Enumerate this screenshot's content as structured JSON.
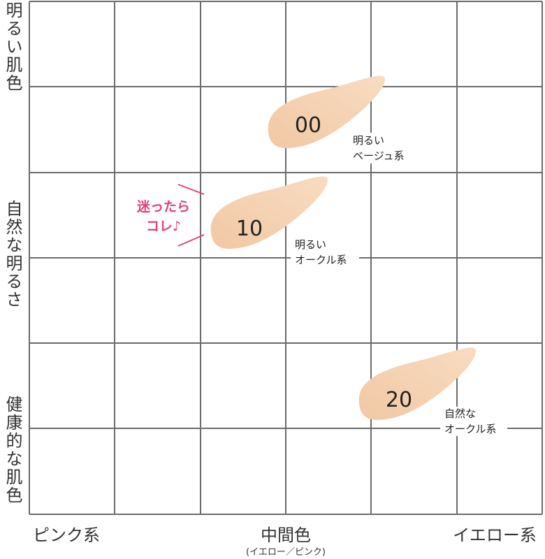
{
  "y_axis_labels": [
    "明るい肌色",
    "自然な明るさ",
    "健康的な肌色"
  ],
  "x_axis_labels": [
    "ピンク系",
    "中間色",
    "イエロー系"
  ],
  "x_axis_sublabel": "(イエロー／ピンク)",
  "shades": [
    {
      "code": "00",
      "description": [
        "明るい",
        "ベージュ系"
      ]
    },
    {
      "code": "10",
      "description": [
        "明るい",
        "オークル系"
      ]
    },
    {
      "code": "20",
      "description": [
        "自然な",
        "オークル系"
      ]
    }
  ],
  "callout": [
    "迷ったら",
    "コレ♪"
  ]
}
